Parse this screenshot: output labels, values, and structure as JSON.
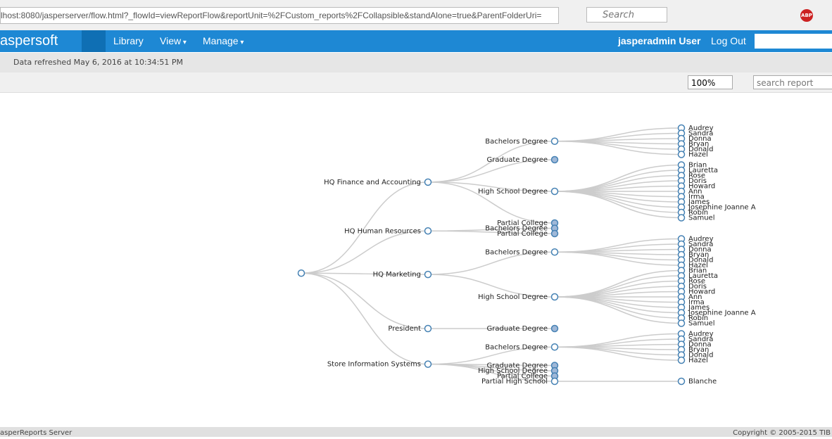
{
  "browser": {
    "url": "lhost:8080/jasperserver/flow.html?_flowId=viewReportFlow&reportUnit=%2FCustom_reports%2FCollapsible&standAlone=true&ParentFolderUri=",
    "search_placeholder": "Search",
    "addon": "ABP"
  },
  "nav": {
    "brand": "aspersoft",
    "menu": [
      "Library",
      "View",
      "Manage"
    ],
    "user": "jasperadmin User",
    "logout": "Log Out"
  },
  "status": "Data refreshed May 6, 2016 at 10:34:51 PM",
  "toolbar": {
    "zoom": "100%",
    "search_placeholder": "search report"
  },
  "tree": {
    "children": [
      {
        "label": "HQ Finance and Accounting",
        "children": [
          {
            "label": "Bachelors Degree",
            "children": [
              {
                "label": "Audrey"
              },
              {
                "label": "Sandra"
              },
              {
                "label": "Donna"
              },
              {
                "label": "Bryan"
              },
              {
                "label": "Donald"
              },
              {
                "label": "Hazel"
              }
            ]
          },
          {
            "label": "Graduate Degree",
            "collapsed": true
          },
          {
            "label": "High School Degree",
            "children": [
              {
                "label": "Brian"
              },
              {
                "label": "Lauretta"
              },
              {
                "label": "Rose"
              },
              {
                "label": "Doris"
              },
              {
                "label": "Howard"
              },
              {
                "label": "Ann"
              },
              {
                "label": "Irma"
              },
              {
                "label": "James"
              },
              {
                "label": "Josephine Joanne A"
              },
              {
                "label": "Robin"
              },
              {
                "label": "Samuel"
              }
            ]
          },
          {
            "label": "Partial College",
            "collapsed": true
          }
        ]
      },
      {
        "label": "HQ Human Resources",
        "children": [
          {
            "label": "Bachelors Degree",
            "collapsed": true
          },
          {
            "label": "Partial College",
            "collapsed": true
          }
        ]
      },
      {
        "label": "HQ Marketing",
        "children": [
          {
            "label": "Bachelors Degree",
            "children": [
              {
                "label": "Audrey"
              },
              {
                "label": "Sandra"
              },
              {
                "label": "Donna"
              },
              {
                "label": "Bryan"
              },
              {
                "label": "Donald"
              },
              {
                "label": "Hazel"
              }
            ]
          },
          {
            "label": "High School Degree",
            "children": [
              {
                "label": "Brian"
              },
              {
                "label": "Lauretta"
              },
              {
                "label": "Rose"
              },
              {
                "label": "Doris"
              },
              {
                "label": "Howard"
              },
              {
                "label": "Ann"
              },
              {
                "label": "Irma"
              },
              {
                "label": "James"
              },
              {
                "label": "Josephine Joanne A"
              },
              {
                "label": "Robin"
              },
              {
                "label": "Samuel"
              }
            ]
          }
        ]
      },
      {
        "label": "President",
        "children": [
          {
            "label": "Graduate Degree",
            "collapsed": true
          }
        ]
      },
      {
        "label": "Store Information Systems",
        "children": [
          {
            "label": "Bachelors Degree",
            "children": [
              {
                "label": "Audrey"
              },
              {
                "label": "Sandra"
              },
              {
                "label": "Donna"
              },
              {
                "label": "Bryan"
              },
              {
                "label": "Donald"
              },
              {
                "label": "Hazel"
              }
            ]
          },
          {
            "label": "Graduate Degree",
            "collapsed": true
          },
          {
            "label": "High School Degree",
            "collapsed": true
          },
          {
            "label": "Partial College",
            "collapsed": true
          },
          {
            "label": "Partial High School",
            "children": [
              {
                "label": "Blanche"
              }
            ]
          }
        ]
      }
    ]
  },
  "footer": {
    "left": "asperReports Server",
    "right": "Copyright © 2005-2015 TIB"
  }
}
